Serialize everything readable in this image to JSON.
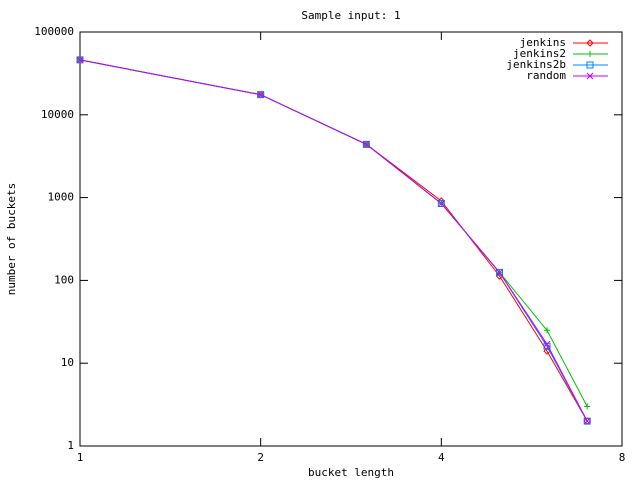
{
  "chart_data": {
    "type": "line",
    "title": "Sample input: 1",
    "x_label": "bucket length",
    "y_label": "number of buckets",
    "x": [
      1,
      2,
      3,
      4,
      5,
      6,
      7
    ],
    "series": [
      {
        "name": "jenkins",
        "color": "#ff0000",
        "marker": "diamond",
        "values": [
          46000,
          17500,
          4400,
          910,
          113,
          14,
          2
        ]
      },
      {
        "name": "jenkins2",
        "color": "#00c000",
        "marker": "plus",
        "values": [
          46000,
          17500,
          4400,
          850,
          125,
          25,
          3
        ]
      },
      {
        "name": "jenkins2b",
        "color": "#0080ff",
        "marker": "box",
        "values": [
          46000,
          17500,
          4400,
          850,
          125,
          16,
          2
        ]
      },
      {
        "name": "random",
        "color": "#c000ff",
        "marker": "cross",
        "values": [
          46000,
          17500,
          4400,
          850,
          125,
          17,
          2
        ]
      }
    ],
    "xlim": [
      1,
      8
    ],
    "xticks": [
      1,
      2,
      4,
      8
    ],
    "x_log_base": 2,
    "ylim": [
      1,
      100000
    ],
    "yticks": [
      1,
      10,
      100,
      1000,
      10000,
      100000
    ],
    "y_log_base": 10,
    "legend": "top-right"
  }
}
